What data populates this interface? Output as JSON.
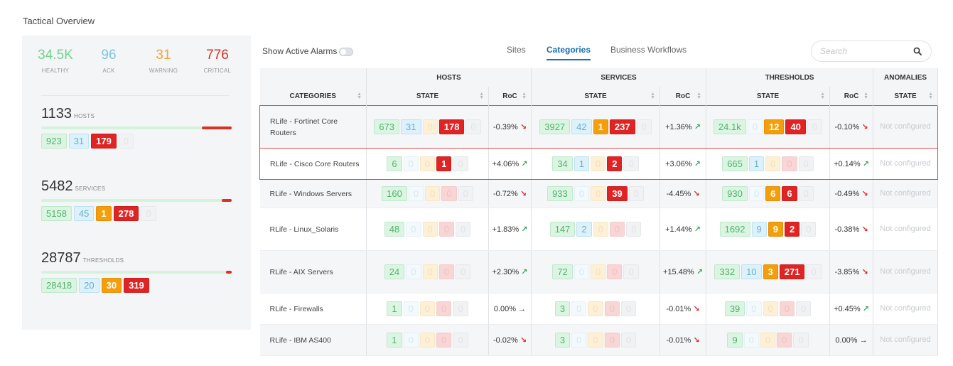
{
  "page": {
    "title": "Tactical Overview"
  },
  "kpis": [
    {
      "value": "34.5K",
      "label": "HEALTHY",
      "color": "#72d48f"
    },
    {
      "value": "96",
      "label": "ACK",
      "color": "#7cc6e3"
    },
    {
      "value": "31",
      "label": "WARNING",
      "color": "#f2a23b"
    },
    {
      "value": "776",
      "label": "CRITICAL",
      "color": "#d93025"
    }
  ],
  "summaries": [
    {
      "total": "1133",
      "unit": "HOSTS",
      "ok": "923",
      "ack": "31",
      "crit": "179",
      "unk": "0",
      "crit_fraction": 0.158
    },
    {
      "total": "5482",
      "unit": "SERVICES",
      "ok": "5158",
      "ack": "45",
      "warn": "1",
      "crit": "278",
      "unk": "0",
      "crit_fraction": 0.051
    },
    {
      "total": "28787",
      "unit": "THRESHOLDS",
      "ok": "28418",
      "ack": "20",
      "warn": "30",
      "crit": "319",
      "crit_fraction": 0.011
    }
  ],
  "toolbar": {
    "alarm_label": "Show Active Alarms",
    "tabs": [
      "Sites",
      "Categories",
      "Business Workflows"
    ],
    "active_tab": "Categories",
    "search_placeholder": "Search"
  },
  "table": {
    "groups": [
      "HOSTS",
      "SERVICES",
      "THRESHOLDS",
      "ANOMALIES"
    ],
    "columns": [
      "CATEGORIES",
      "STATE",
      "RoC",
      "STATE",
      "RoC",
      "STATE",
      "RoC",
      "STATE"
    ],
    "rows": [
      {
        "name": "RLife - Fortinet Core Routers",
        "hosts": [
          "673",
          "31",
          "0",
          "178",
          "0"
        ],
        "hosts_roc": "-0.39%",
        "hosts_dir": "down",
        "svc": [
          "3927",
          "42",
          "1",
          "237",
          "0"
        ],
        "svc_roc": "+1.36%",
        "svc_dir": "up",
        "thr": [
          "24.1k",
          "0",
          "12",
          "40",
          "0"
        ],
        "thr_roc": "-0.10%",
        "thr_dir": "down",
        "anom": "Not configured"
      },
      {
        "name": "RLife - Cisco Core Routers",
        "hosts": [
          "6",
          "0",
          "0",
          "1",
          "0"
        ],
        "hosts_roc": "+4.06%",
        "hosts_dir": "up",
        "svc": [
          "34",
          "1",
          "0",
          "2",
          "0"
        ],
        "svc_roc": "+3.06%",
        "svc_dir": "up",
        "thr": [
          "665",
          "1",
          "0",
          "0",
          "0"
        ],
        "thr_roc": "+0.14%",
        "thr_dir": "up",
        "anom": "Not configured"
      },
      {
        "name": "RLife - Windows Servers",
        "hosts": [
          "160",
          "0",
          "0",
          "0",
          "0"
        ],
        "hosts_roc": "-0.72%",
        "hosts_dir": "down",
        "svc": [
          "933",
          "0",
          "0",
          "39",
          "0"
        ],
        "svc_roc": "-4.45%",
        "svc_dir": "down",
        "thr": [
          "930",
          "0",
          "6",
          "6",
          "0"
        ],
        "thr_roc": "-0.49%",
        "thr_dir": "down",
        "anom": "Not configured"
      },
      {
        "name": "RLife - Linux_Solaris",
        "hosts": [
          "48",
          "0",
          "0",
          "0",
          "0"
        ],
        "hosts_roc": "+1.83%",
        "hosts_dir": "up",
        "svc": [
          "147",
          "2",
          "0",
          "0",
          "0"
        ],
        "svc_roc": "+1.44%",
        "svc_dir": "up",
        "thr": [
          "1692",
          "9",
          "9",
          "2",
          "0"
        ],
        "thr_roc": "-0.38%",
        "thr_dir": "down",
        "anom": "Not configured"
      },
      {
        "name": "RLife - AIX Servers",
        "hosts": [
          "24",
          "0",
          "0",
          "0",
          "0"
        ],
        "hosts_roc": "+2.30%",
        "hosts_dir": "up",
        "svc": [
          "72",
          "0",
          "0",
          "0",
          "0"
        ],
        "svc_roc": "+15.48%",
        "svc_dir": "up",
        "thr": [
          "332",
          "10",
          "3",
          "271",
          "0"
        ],
        "thr_roc": "-3.85%",
        "thr_dir": "down",
        "anom": "Not configured"
      },
      {
        "name": "RLife - Firewalls",
        "hosts": [
          "1",
          "0",
          "0",
          "0",
          "0"
        ],
        "hosts_roc": "0.00%",
        "hosts_dir": "flat",
        "svc": [
          "3",
          "0",
          "0",
          "0",
          "0"
        ],
        "svc_roc": "-0.01%",
        "svc_dir": "down",
        "thr": [
          "39",
          "0",
          "0",
          "0",
          "0"
        ],
        "thr_roc": "+0.45%",
        "thr_dir": "up",
        "anom": "Not configured"
      },
      {
        "name": "RLife - IBM AS400",
        "hosts": [
          "1",
          "0",
          "0",
          "0",
          "0"
        ],
        "hosts_roc": "-0.02%",
        "hosts_dir": "down",
        "svc": [
          "3",
          "0",
          "0",
          "0",
          "0"
        ],
        "svc_roc": "-0.01%",
        "svc_dir": "down",
        "thr": [
          "9",
          "0",
          "0",
          "0",
          "0"
        ],
        "thr_roc": "0.00%",
        "thr_dir": "flat",
        "anom": "Not configured"
      }
    ]
  }
}
